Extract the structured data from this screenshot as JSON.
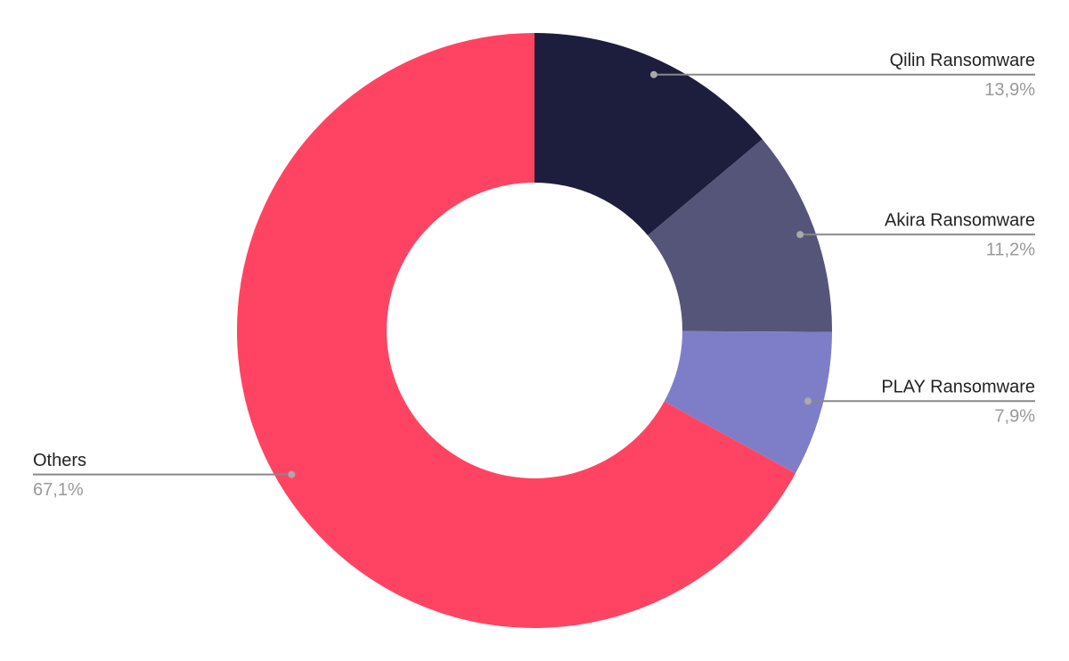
{
  "chart_data": {
    "type": "donut",
    "categories": [
      "Qilin Ransomware",
      "Akira Ransomware",
      "PLAY Ransomware",
      "Others"
    ],
    "values": [
      13.9,
      11.2,
      7.9,
      67.1
    ],
    "value_labels": [
      "13,9%",
      "11,2%",
      "7,9%",
      "67,1%"
    ],
    "colors": [
      "#1d1e3d",
      "#55557a",
      "#7e7ec8",
      "#ff4463"
    ]
  }
}
